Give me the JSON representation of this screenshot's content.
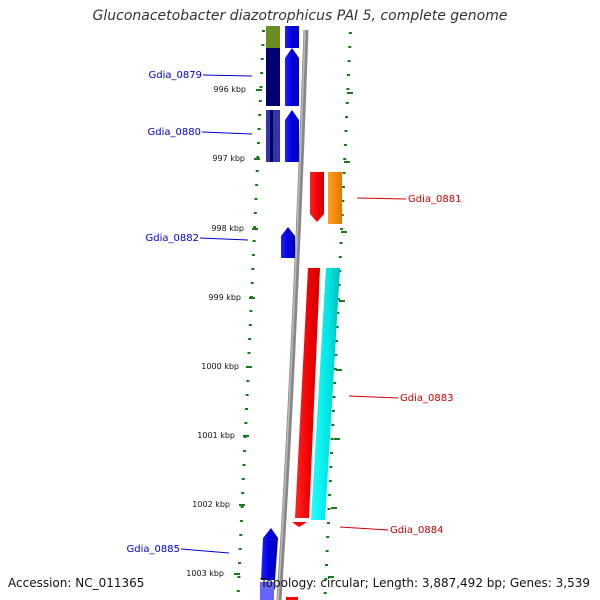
{
  "title": "Gluconacetobacter diazotrophicus PAI 5, complete genome",
  "accession": "Accession: NC_011365",
  "topology": "Topology: circular; Length: 3,887,492 bp; Genes: 3,539",
  "colors": {
    "backbone": "#888888",
    "tick": "#1a7a1a",
    "gene_blue": "#0000ee",
    "gene_navy": "#000066",
    "gene_olive": "#6b8e23",
    "gene_red": "#ff0000",
    "gene_orange": "#ff8c00",
    "gene_cyan": "#00eeee",
    "label_left": "#0000cc",
    "label_right": "#cc0000"
  },
  "scale_labels": [
    "996 kbp",
    "997 kbp",
    "998 kbp",
    "999 kbp",
    "1000 kbp",
    "1001 kbp",
    "1002 kbp",
    "1003 kbp"
  ],
  "gene_labels": [
    {
      "name": "Gdia_0879",
      "side": "left"
    },
    {
      "name": "Gdia_0880",
      "side": "left"
    },
    {
      "name": "Gdia_0881",
      "side": "right"
    },
    {
      "name": "Gdia_0882",
      "side": "left"
    },
    {
      "name": "Gdia_0883",
      "side": "right"
    },
    {
      "name": "Gdia_0884",
      "side": "right"
    },
    {
      "name": "Gdia_0885",
      "side": "left"
    }
  ]
}
